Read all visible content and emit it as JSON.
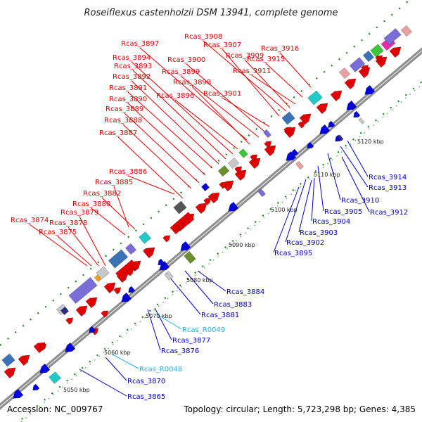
{
  "title": "Roseiflexus castenholzii DSM 13941, complete genome",
  "accession": "Accession: NC_009767",
  "summary": "Topology: circular; Length: 5,723,298 bp; Genes: 4,385",
  "colors": {
    "forward_label": "#e00000",
    "reverse_label": "#0000c0",
    "rna_label": "#22b3e8",
    "backbone": "#8c8c8c",
    "tick": "#118811"
  },
  "kbp_marks": [
    {
      "id": "5050",
      "label": "5050 kbp"
    },
    {
      "id": "5060",
      "label": "5060 kbp"
    },
    {
      "id": "5070",
      "label": "5070 kbp"
    },
    {
      "id": "5080",
      "label": "5080 kbp"
    },
    {
      "id": "5090",
      "label": "5090 kbp"
    },
    {
      "id": "5100",
      "label": "5100 kbp"
    },
    {
      "id": "5110",
      "label": "5110 kbp"
    },
    {
      "id": "5120",
      "label": "5120 kbp"
    }
  ],
  "forward_genes": [
    "Rcas_3874",
    "Rcas_3875",
    "Rcas_3878",
    "Rcas_3879",
    "Rcas_3880",
    "Rcas_3882",
    "Rcas_3885",
    "Rcas_3886",
    "Rcas_3887",
    "Rcas_3888",
    "Rcas_3889",
    "Rcas_3890",
    "Rcas_3891",
    "Rcas_3892",
    "Rcas_3893",
    "Rcas_3894",
    "Rcas_3896",
    "Rcas_3897",
    "Rcas_3898",
    "Rcas_3899",
    "Rcas_3900",
    "Rcas_3901",
    "Rcas_3907",
    "Rcas_3908",
    "Rcas_3909",
    "Rcas_3911",
    "Rcas_3915",
    "Rcas_3916"
  ],
  "reverse_genes": [
    "Rcas_3865",
    "Rcas_3870",
    "Rcas_R0048",
    "Rcas_3876",
    "Rcas_3877",
    "Rcas_R0049",
    "Rcas_3881",
    "Rcas_3883",
    "Rcas_3884",
    "Rcas_3895",
    "Rcas_3902",
    "Rcas_3903",
    "Rcas_3904",
    "Rcas_3905",
    "Rcas_3910",
    "Rcas_3912",
    "Rcas_3913",
    "Rcas_3914"
  ]
}
